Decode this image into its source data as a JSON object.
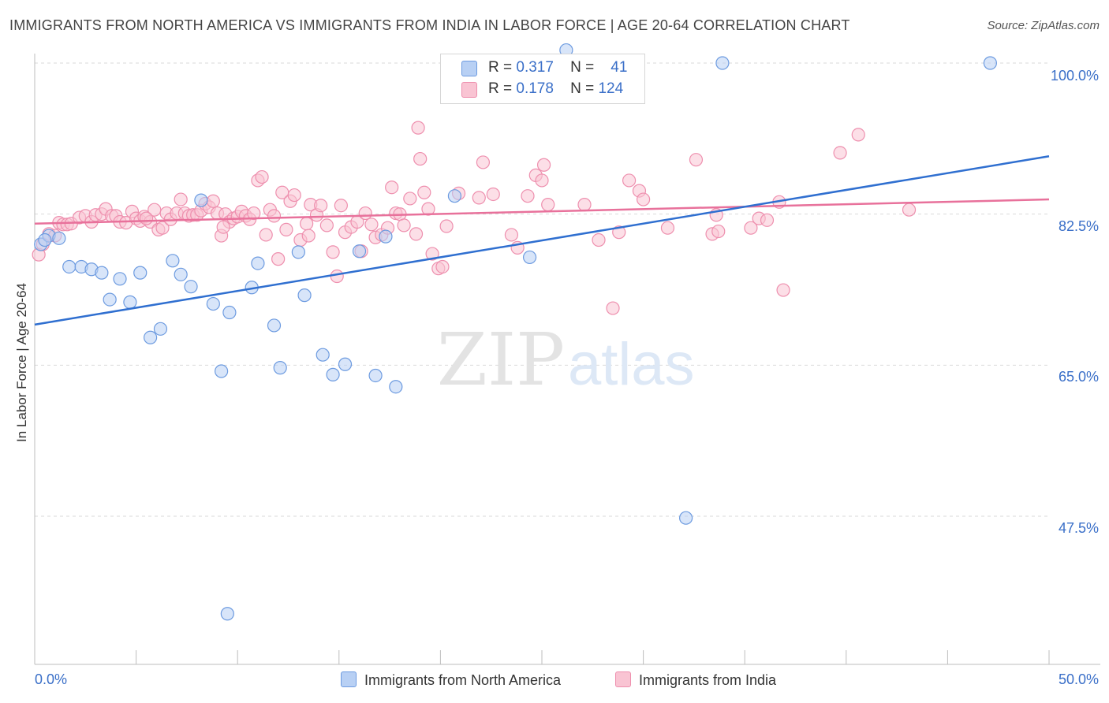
{
  "header": {
    "title": "IMMIGRANTS FROM NORTH AMERICA VS IMMIGRANTS FROM INDIA IN LABOR FORCE | AGE 20-64 CORRELATION CHART",
    "source": "Source: ZipAtlas.com"
  },
  "watermark": {
    "zip": "ZIP",
    "atlas": "atlas"
  },
  "legend": {
    "r_label": "R =",
    "n_label": "N =",
    "rows": [
      {
        "r": "0.317",
        "n": "41",
        "color": "#b8d0f4"
      },
      {
        "r": "0.178",
        "n": "124",
        "color": "#f9c4d3"
      }
    ]
  },
  "colors": {
    "blue_fill": "#b8d0f4",
    "blue_stroke": "#6d9be0",
    "blue_line": "#2f6fd0",
    "pink_fill": "#f9c4d3",
    "pink_stroke": "#ee8fae",
    "pink_line": "#e8719b",
    "tick_text": "#3a6fc8",
    "grid": "#d9d9d9"
  },
  "chart_data": {
    "type": "scatter",
    "title": "IMMIGRANTS FROM NORTH AMERICA VS IMMIGRANTS FROM INDIA IN LABOR FORCE | AGE 20-64 CORRELATION CHART",
    "ylabel": "In Labor Force | Age 20-64",
    "xlabel": "",
    "xlim": [
      0,
      50
    ],
    "ylim": [
      33,
      102
    ],
    "x_tick_labels": [
      "0.0%",
      "50.0%"
    ],
    "y_ticks": [
      {
        "value": 100,
        "label": "100.0%"
      },
      {
        "value": 82.5,
        "label": "82.5%"
      },
      {
        "value": 65,
        "label": "65.0%"
      },
      {
        "value": 47.5,
        "label": "47.5%"
      }
    ],
    "grid": "horizontal dashed",
    "series": [
      {
        "name": "Immigrants from North America",
        "r": 0.317,
        "n": 41,
        "trend": {
          "x": [
            0,
            50
          ],
          "y": [
            69.7,
            89.2
          ]
        },
        "points": [
          [
            0.3,
            79.0
          ],
          [
            0.7,
            80.0
          ],
          [
            1.2,
            79.7
          ],
          [
            1.7,
            76.4
          ],
          [
            2.3,
            76.4
          ],
          [
            2.8,
            76.1
          ],
          [
            3.3,
            75.7
          ],
          [
            3.7,
            72.6
          ],
          [
            4.2,
            75.0
          ],
          [
            4.7,
            72.3
          ],
          [
            5.2,
            75.7
          ],
          [
            5.7,
            68.2
          ],
          [
            6.2,
            69.2
          ],
          [
            6.8,
            77.1
          ],
          [
            7.2,
            75.5
          ],
          [
            7.7,
            74.1
          ],
          [
            8.2,
            84.1
          ],
          [
            8.8,
            72.1
          ],
          [
            9.2,
            64.3
          ],
          [
            9.5,
            36.2
          ],
          [
            9.6,
            71.1
          ],
          [
            10.7,
            74.0
          ],
          [
            11.0,
            76.8
          ],
          [
            11.8,
            69.6
          ],
          [
            12.1,
            64.7
          ],
          [
            13.0,
            78.1
          ],
          [
            13.3,
            73.1
          ],
          [
            14.2,
            66.2
          ],
          [
            14.7,
            63.9
          ],
          [
            15.3,
            65.1
          ],
          [
            16.0,
            78.2
          ],
          [
            16.8,
            63.8
          ],
          [
            17.3,
            79.9
          ],
          [
            17.8,
            62.5
          ],
          [
            20.7,
            84.6
          ],
          [
            24.4,
            77.5
          ],
          [
            26.2,
            101.5
          ],
          [
            32.1,
            47.3
          ],
          [
            33.9,
            100.0
          ],
          [
            47.1,
            100.0
          ],
          [
            0.5,
            79.5
          ]
        ]
      },
      {
        "name": "Immigrants from India",
        "r": 0.178,
        "n": 124,
        "trend": {
          "x": [
            0,
            50
          ],
          "y": [
            81.4,
            84.2
          ]
        },
        "points": [
          [
            0.2,
            77.8
          ],
          [
            0.4,
            79.0
          ],
          [
            0.7,
            80.2
          ],
          [
            1.0,
            80.0
          ],
          [
            1.2,
            81.5
          ],
          [
            1.4,
            81.3
          ],
          [
            1.6,
            81.3
          ],
          [
            1.8,
            81.4
          ],
          [
            2.2,
            82.1
          ],
          [
            2.5,
            82.3
          ],
          [
            2.8,
            81.6
          ],
          [
            3.0,
            82.4
          ],
          [
            3.3,
            82.5
          ],
          [
            3.5,
            83.1
          ],
          [
            3.8,
            82.3
          ],
          [
            4.0,
            82.3
          ],
          [
            4.2,
            81.6
          ],
          [
            4.5,
            81.5
          ],
          [
            4.8,
            82.8
          ],
          [
            5.0,
            82.0
          ],
          [
            5.2,
            81.7
          ],
          [
            5.4,
            82.2
          ],
          [
            5.7,
            81.6
          ],
          [
            5.9,
            83.0
          ],
          [
            6.1,
            80.7
          ],
          [
            6.3,
            80.9
          ],
          [
            6.5,
            82.6
          ],
          [
            6.7,
            81.9
          ],
          [
            7.0,
            82.6
          ],
          [
            7.2,
            84.2
          ],
          [
            7.4,
            82.6
          ],
          [
            7.6,
            82.3
          ],
          [
            7.8,
            82.4
          ],
          [
            8.0,
            82.4
          ],
          [
            8.2,
            82.9
          ],
          [
            8.4,
            83.7
          ],
          [
            8.6,
            83.3
          ],
          [
            8.8,
            84.0
          ],
          [
            9.0,
            82.6
          ],
          [
            9.2,
            80.0
          ],
          [
            9.4,
            82.5
          ],
          [
            9.6,
            81.6
          ],
          [
            9.8,
            82.0
          ],
          [
            10.0,
            82.2
          ],
          [
            10.2,
            82.8
          ],
          [
            10.4,
            82.3
          ],
          [
            10.6,
            81.9
          ],
          [
            10.8,
            82.6
          ],
          [
            11.0,
            86.4
          ],
          [
            11.2,
            86.8
          ],
          [
            11.4,
            80.1
          ],
          [
            11.6,
            83.0
          ],
          [
            11.8,
            82.3
          ],
          [
            12.0,
            77.3
          ],
          [
            12.2,
            85.0
          ],
          [
            12.4,
            80.7
          ],
          [
            12.6,
            84.0
          ],
          [
            12.8,
            84.7
          ],
          [
            13.1,
            79.5
          ],
          [
            13.4,
            81.4
          ],
          [
            13.6,
            83.6
          ],
          [
            13.9,
            82.4
          ],
          [
            14.1,
            83.5
          ],
          [
            14.4,
            81.2
          ],
          [
            14.7,
            78.1
          ],
          [
            14.9,
            75.3
          ],
          [
            15.1,
            83.5
          ],
          [
            15.3,
            80.4
          ],
          [
            15.6,
            81.0
          ],
          [
            15.9,
            81.6
          ],
          [
            16.1,
            78.2
          ],
          [
            16.3,
            82.6
          ],
          [
            16.6,
            81.3
          ],
          [
            16.8,
            79.8
          ],
          [
            17.1,
            80.1
          ],
          [
            17.4,
            80.9
          ],
          [
            17.6,
            85.6
          ],
          [
            17.8,
            82.6
          ],
          [
            18.0,
            82.5
          ],
          [
            18.2,
            81.2
          ],
          [
            18.5,
            84.3
          ],
          [
            18.8,
            80.2
          ],
          [
            19.0,
            88.9
          ],
          [
            19.2,
            85.0
          ],
          [
            19.4,
            83.1
          ],
          [
            19.6,
            77.9
          ],
          [
            19.9,
            76.2
          ],
          [
            20.1,
            76.4
          ],
          [
            20.3,
            81.1
          ],
          [
            20.9,
            84.9
          ],
          [
            21.9,
            84.4
          ],
          [
            22.1,
            88.5
          ],
          [
            22.6,
            84.8
          ],
          [
            23.5,
            80.1
          ],
          [
            23.8,
            78.6
          ],
          [
            24.3,
            84.6
          ],
          [
            24.7,
            87.0
          ],
          [
            25.0,
            86.4
          ],
          [
            25.1,
            88.2
          ],
          [
            25.3,
            83.6
          ],
          [
            27.1,
            83.6
          ],
          [
            27.8,
            79.5
          ],
          [
            28.5,
            71.6
          ],
          [
            28.8,
            80.4
          ],
          [
            29.3,
            86.4
          ],
          [
            29.8,
            85.2
          ],
          [
            30.0,
            84.2
          ],
          [
            31.2,
            80.9
          ],
          [
            32.6,
            88.8
          ],
          [
            33.4,
            80.2
          ],
          [
            33.7,
            80.5
          ],
          [
            35.3,
            80.9
          ],
          [
            35.7,
            82.0
          ],
          [
            36.1,
            81.8
          ],
          [
            36.7,
            83.9
          ],
          [
            36.9,
            73.7
          ],
          [
            39.7,
            89.6
          ],
          [
            40.6,
            91.7
          ],
          [
            43.1,
            83.0
          ],
          [
            18.9,
            92.5
          ],
          [
            33.6,
            82.4
          ],
          [
            13.5,
            80.0
          ],
          [
            9.3,
            81.0
          ],
          [
            5.5,
            82.0
          ]
        ]
      }
    ]
  },
  "bottom_legend": {
    "items": [
      {
        "label": "Immigrants from North America"
      },
      {
        "label": "Immigrants from India"
      }
    ]
  }
}
